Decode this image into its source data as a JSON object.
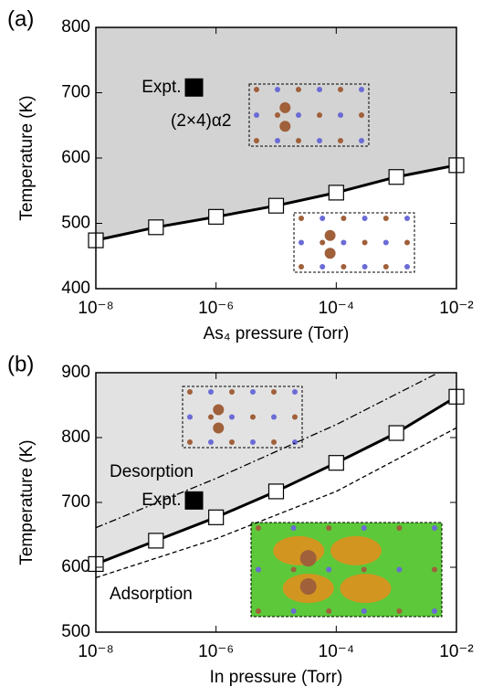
{
  "chart_data": [
    {
      "type": "line",
      "label": "(a)",
      "xlabel": "As₄ pressure (Torr)",
      "ylabel": "Temperature (K)",
      "xscale": "log",
      "xlim": [
        1e-08,
        0.01
      ],
      "ylim": [
        400,
        800
      ],
      "xticks": [
        {
          "value": 1e-08,
          "label": "10⁻⁸"
        },
        {
          "value": 1e-06,
          "label": "10⁻⁶"
        },
        {
          "value": 0.0001,
          "label": "10⁻⁴"
        },
        {
          "value": 0.01,
          "label": "10⁻²"
        }
      ],
      "yticks": [
        400,
        500,
        600,
        700,
        800
      ],
      "shade_color": "#d3d3d3",
      "color": "#000000",
      "x": [
        1e-08,
        1e-07,
        1e-06,
        1e-05,
        0.0001,
        0.001,
        0.01
      ],
      "values": [
        474,
        494,
        510,
        527,
        547,
        571,
        589
      ],
      "expt": {
        "label": "Expt.",
        "x": 4.3e-07,
        "y": 708
      },
      "annotations": [
        "(2×4)α2"
      ],
      "lines": []
    },
    {
      "type": "line",
      "label": "(b)",
      "xlabel": "In pressure (Torr)",
      "ylabel": "Temperature (K)",
      "xscale": "log",
      "xlim": [
        1e-08,
        0.01
      ],
      "ylim": [
        500,
        900
      ],
      "xticks": [
        {
          "value": 1e-08,
          "label": "10⁻⁸"
        },
        {
          "value": 1e-06,
          "label": "10⁻⁶"
        },
        {
          "value": 0.0001,
          "label": "10⁻⁴"
        },
        {
          "value": 0.01,
          "label": "10⁻²"
        }
      ],
      "yticks": [
        500,
        600,
        700,
        800,
        900
      ],
      "shade_color": "#e2e2e2",
      "color": "#000000",
      "x": [
        1e-08,
        1e-07,
        1e-06,
        1e-05,
        0.0001,
        0.001,
        0.01
      ],
      "values": [
        605,
        641,
        677,
        717,
        761,
        807,
        863
      ],
      "expt": {
        "label": "Expt.",
        "x": 4.3e-07,
        "y": 703
      },
      "annotations": [
        "Desorption",
        "Adsorption"
      ],
      "lines": [
        {
          "style": "dash-dot",
          "x": [
            1e-08,
            1e-06,
            0.0001,
            0.005
          ],
          "values": [
            661,
            737,
            820,
            900
          ]
        },
        {
          "style": "dash",
          "x": [
            1e-08,
            1e-06,
            0.0001,
            0.01
          ],
          "values": [
            584,
            644,
            717,
            815
          ]
        }
      ]
    }
  ]
}
